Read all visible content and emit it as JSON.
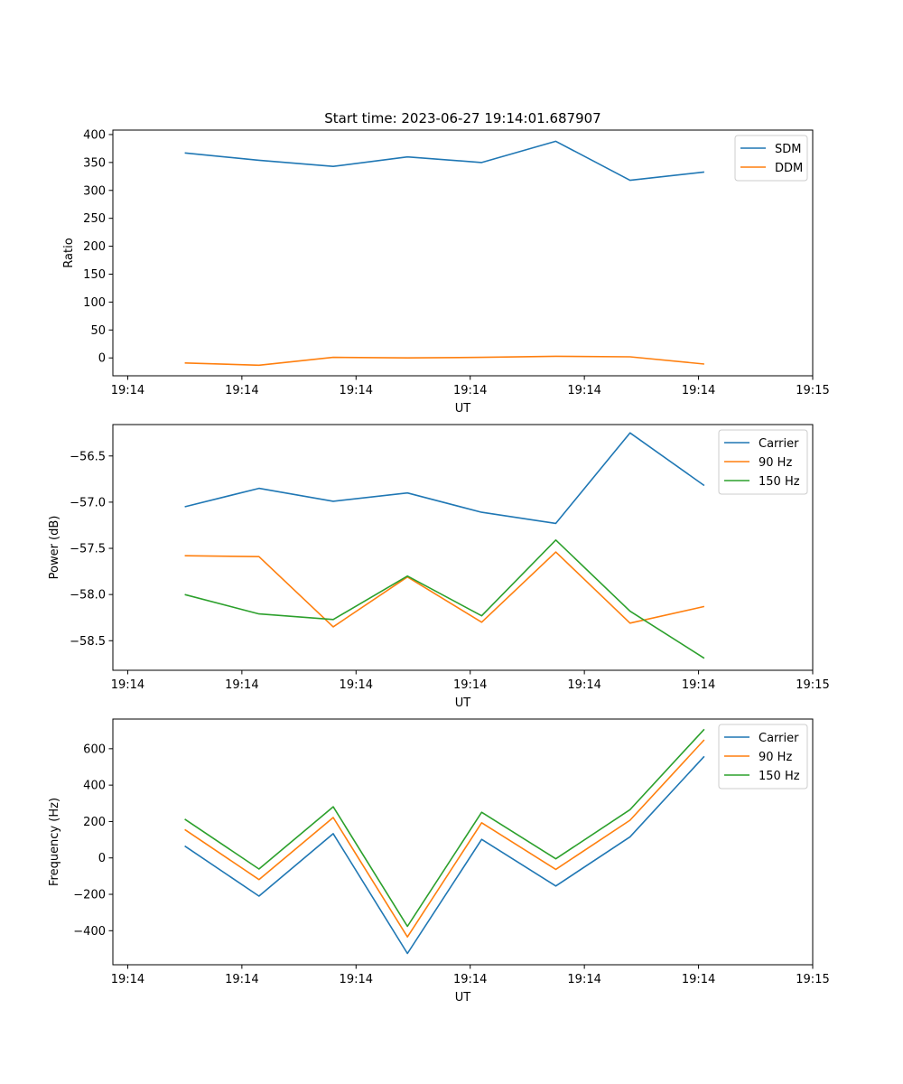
{
  "figure_title": "Start time: 2023-06-27 19:14:01.687907",
  "chart_data": [
    {
      "type": "line",
      "xlabel": "UT",
      "ylabel": "Ratio",
      "x_tick_labels": [
        "19:14",
        "19:14",
        "19:14",
        "19:14",
        "19:14",
        "19:14",
        "19:15"
      ],
      "x": [
        0.5,
        1.15,
        1.8,
        2.45,
        3.1,
        3.75,
        4.4,
        5.05
      ],
      "xlim": [
        -0.13,
        6.0
      ],
      "ylim": [
        -32,
        408
      ],
      "yticks": [
        0,
        50,
        100,
        150,
        200,
        250,
        300,
        350,
        400
      ],
      "legend_position": "upper right",
      "series": [
        {
          "name": "SDM",
          "color": "#1f77b4",
          "values": [
            367,
            354,
            343,
            360,
            350,
            388,
            318,
            333
          ]
        },
        {
          "name": "DDM",
          "color": "#ff7f0e",
          "values": [
            -9,
            -13,
            1,
            0,
            1,
            3,
            2,
            -11
          ]
        }
      ]
    },
    {
      "type": "line",
      "xlabel": "UT",
      "ylabel": "Power (dB)",
      "x_tick_labels": [
        "19:14",
        "19:14",
        "19:14",
        "19:14",
        "19:14",
        "19:14",
        "19:15"
      ],
      "x": [
        0.5,
        1.15,
        1.8,
        2.45,
        3.1,
        3.75,
        4.4,
        5.05
      ],
      "xlim": [
        -0.13,
        6.0
      ],
      "ylim": [
        -58.82,
        -56.16
      ],
      "yticks": [
        -58.5,
        -58.0,
        -57.5,
        -57.0,
        -56.5
      ],
      "ytick_labels": [
        "−58.5",
        "−58.0",
        "−57.5",
        "−57.0",
        "−56.5"
      ],
      "legend_position": "upper right",
      "series": [
        {
          "name": "Carrier",
          "color": "#1f77b4",
          "values": [
            -57.05,
            -56.85,
            -56.99,
            -56.9,
            -57.11,
            -57.23,
            -56.25,
            -56.82
          ]
        },
        {
          "name": "90 Hz",
          "color": "#ff7f0e",
          "values": [
            -57.58,
            -57.59,
            -58.35,
            -57.81,
            -58.3,
            -57.54,
            -58.31,
            -58.13
          ]
        },
        {
          "name": "150 Hz",
          "color": "#2ca02c",
          "values": [
            -58.0,
            -58.21,
            -58.27,
            -57.8,
            -58.23,
            -57.41,
            -58.18,
            -58.69
          ]
        }
      ]
    },
    {
      "type": "line",
      "xlabel": "UT",
      "ylabel": "Frequency (Hz)",
      "x_tick_labels": [
        "19:14",
        "19:14",
        "19:14",
        "19:14",
        "19:14",
        "19:14",
        "19:15"
      ],
      "x": [
        0.5,
        1.15,
        1.8,
        2.45,
        3.1,
        3.75,
        4.4,
        5.05
      ],
      "xlim": [
        -0.13,
        6.0
      ],
      "ylim": [
        -587,
        763
      ],
      "yticks": [
        -400,
        -200,
        0,
        200,
        400,
        600
      ],
      "ytick_labels": [
        "−400",
        "−200",
        "0",
        "200",
        "400",
        "600"
      ],
      "legend_position": "upper right",
      "series": [
        {
          "name": "Carrier",
          "color": "#1f77b4",
          "values": [
            65,
            -210,
            133,
            -525,
            102,
            -154,
            116,
            558
          ]
        },
        {
          "name": "90 Hz",
          "color": "#ff7f0e",
          "values": [
            156,
            -119,
            222,
            -434,
            193,
            -63,
            207,
            649
          ]
        },
        {
          "name": "150 Hz",
          "color": "#2ca02c",
          "values": [
            213,
            -61,
            281,
            -376,
            251,
            -5,
            265,
            707
          ]
        }
      ]
    }
  ]
}
